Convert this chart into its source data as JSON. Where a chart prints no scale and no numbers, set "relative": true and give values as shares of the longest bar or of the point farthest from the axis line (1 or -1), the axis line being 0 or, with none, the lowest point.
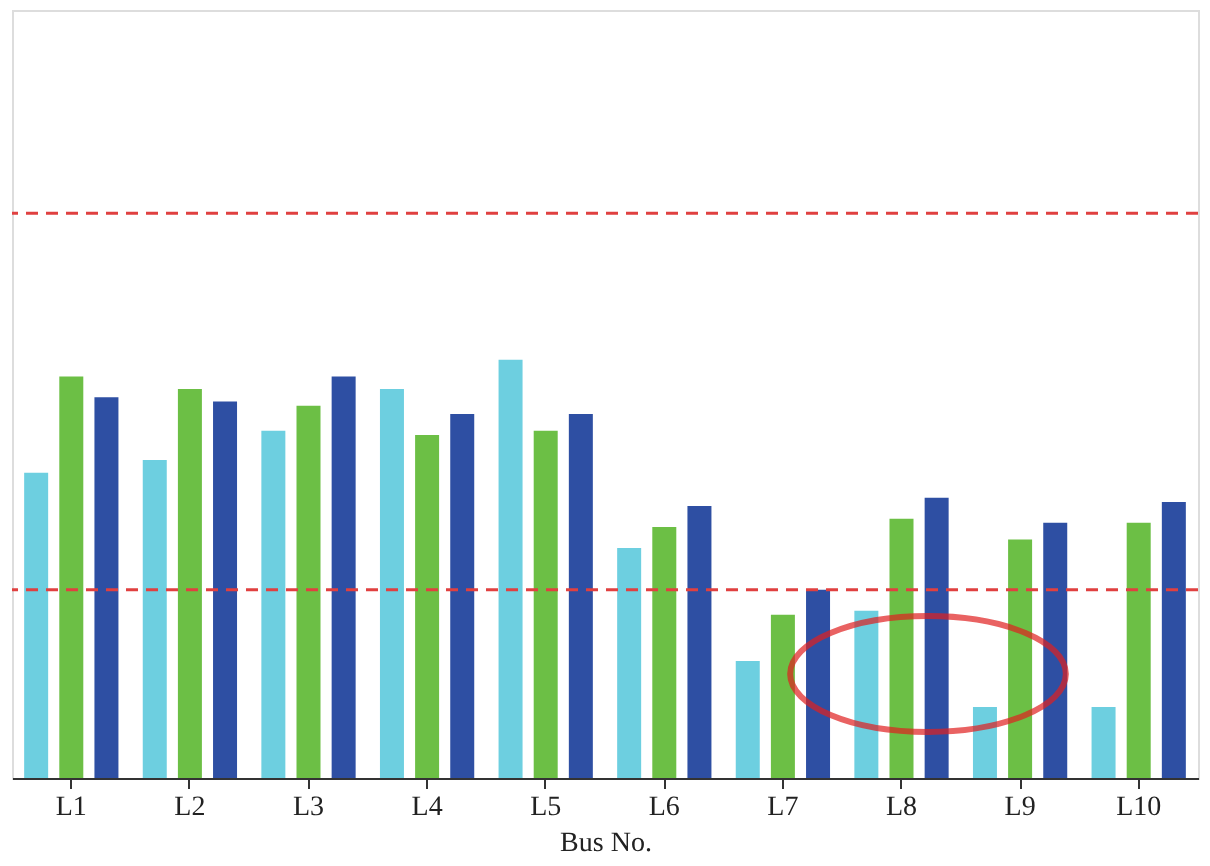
{
  "chart_data": {
    "type": "bar",
    "relative": true,
    "xlabel": "Bus No.",
    "categories": [
      "L1",
      "L2",
      "L3",
      "L4",
      "L5",
      "L6",
      "L7",
      "L8",
      "L9",
      "L10"
    ],
    "series": [
      {
        "color": "#6dcfe0",
        "values": [
          0.73,
          0.76,
          0.83,
          0.93,
          1.0,
          0.55,
          0.28,
          0.4,
          0.17,
          0.17
        ]
      },
      {
        "color": "#6cbf45",
        "values": [
          0.96,
          0.93,
          0.89,
          0.82,
          0.83,
          0.6,
          0.39,
          0.62,
          0.57,
          0.61
        ]
      },
      {
        "color": "#2e4fa3",
        "values": [
          0.91,
          0.9,
          0.96,
          0.87,
          0.87,
          0.65,
          0.45,
          0.67,
          0.61,
          0.66
        ]
      }
    ],
    "ref_lines": [
      {
        "axis": "y",
        "value": 1.35,
        "color": "#e04040",
        "line_style": "dashed"
      },
      {
        "axis": "y",
        "value": 0.45,
        "color": "#e04040",
        "line_style": "dashed"
      }
    ],
    "legend": false
  }
}
